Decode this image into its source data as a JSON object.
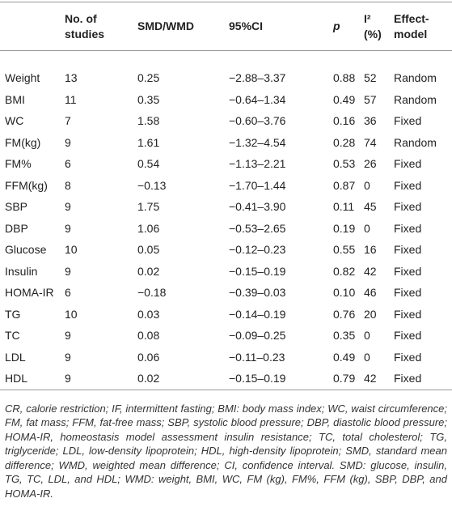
{
  "table": {
    "header": [
      "No. of studies",
      "SMD/WMD",
      "95%CI",
      "p",
      "I² (%)",
      "Effect-model"
    ],
    "rows": [
      [
        "Weight",
        "13",
        "0.25",
        "−2.88–3.37",
        "0.88",
        "52",
        "Random"
      ],
      [
        "BMI",
        "11",
        "0.35",
        "−0.64–1.34",
        "0.49",
        "57",
        "Random"
      ],
      [
        "WC",
        "7",
        "1.58",
        "−0.60–3.76",
        "0.16",
        "36",
        "Fixed"
      ],
      [
        "FM(kg)",
        "9",
        "1.61",
        "−1.32–4.54",
        "0.28",
        "74",
        "Random"
      ],
      [
        "FM%",
        "6",
        "0.54",
        "−1.13–2.21",
        "0.53",
        "26",
        "Fixed"
      ],
      [
        "FFM(kg)",
        "8",
        "−0.13",
        "−1.70–1.44",
        "0.87",
        "0",
        "Fixed"
      ],
      [
        "SBP",
        "9",
        "1.75",
        "−0.41–3.90",
        "0.11",
        "45",
        "Fixed"
      ],
      [
        "DBP",
        "9",
        "1.06",
        "−0.53–2.65",
        "0.19",
        "0",
        "Fixed"
      ],
      [
        "Glucose",
        "10",
        "0.05",
        "−0.12–0.23",
        "0.55",
        "16",
        "Fixed"
      ],
      [
        "Insulin",
        "9",
        "0.02",
        "−0.15–0.19",
        "0.82",
        "42",
        "Fixed"
      ],
      [
        "HOMA-IR",
        "6",
        "−0.18",
        "−0.39–0.03",
        "0.10",
        "46",
        "Fixed"
      ],
      [
        "TG",
        "10",
        "0.03",
        "−0.14–0.19",
        "0.76",
        "20",
        "Fixed"
      ],
      [
        "TC",
        "9",
        "0.08",
        "−0.09–0.25",
        "0.35",
        "0",
        "Fixed"
      ],
      [
        "LDL",
        "9",
        "0.06",
        "−0.11–0.23",
        "0.49",
        "0",
        "Fixed"
      ],
      [
        "HDL",
        "9",
        "0.02",
        "−0.15–0.19",
        "0.79",
        "42",
        "Fixed"
      ]
    ]
  },
  "footnote": "CR, calorie restriction; IF, intermittent fasting; BMI: body mass index; WC, waist circumference; FM, fat mass; FFM, fat-free mass; SBP, systolic blood pressure; DBP, diastolic blood pressure; HOMA-IR, homeostasis model assessment insulin resistance; TC, total cholesterol; TG, triglyceride; LDL, low-density lipoprotein; HDL, high-density lipoprotein; SMD, standard mean difference; WMD, weighted mean difference; CI, confidence interval. SMD: glucose, insulin, TG, TC, LDL, and HDL; WMD: weight, BMI, WC, FM (kg), FM%, FFM (kg), SBP, DBP, and HOMA-IR."
}
